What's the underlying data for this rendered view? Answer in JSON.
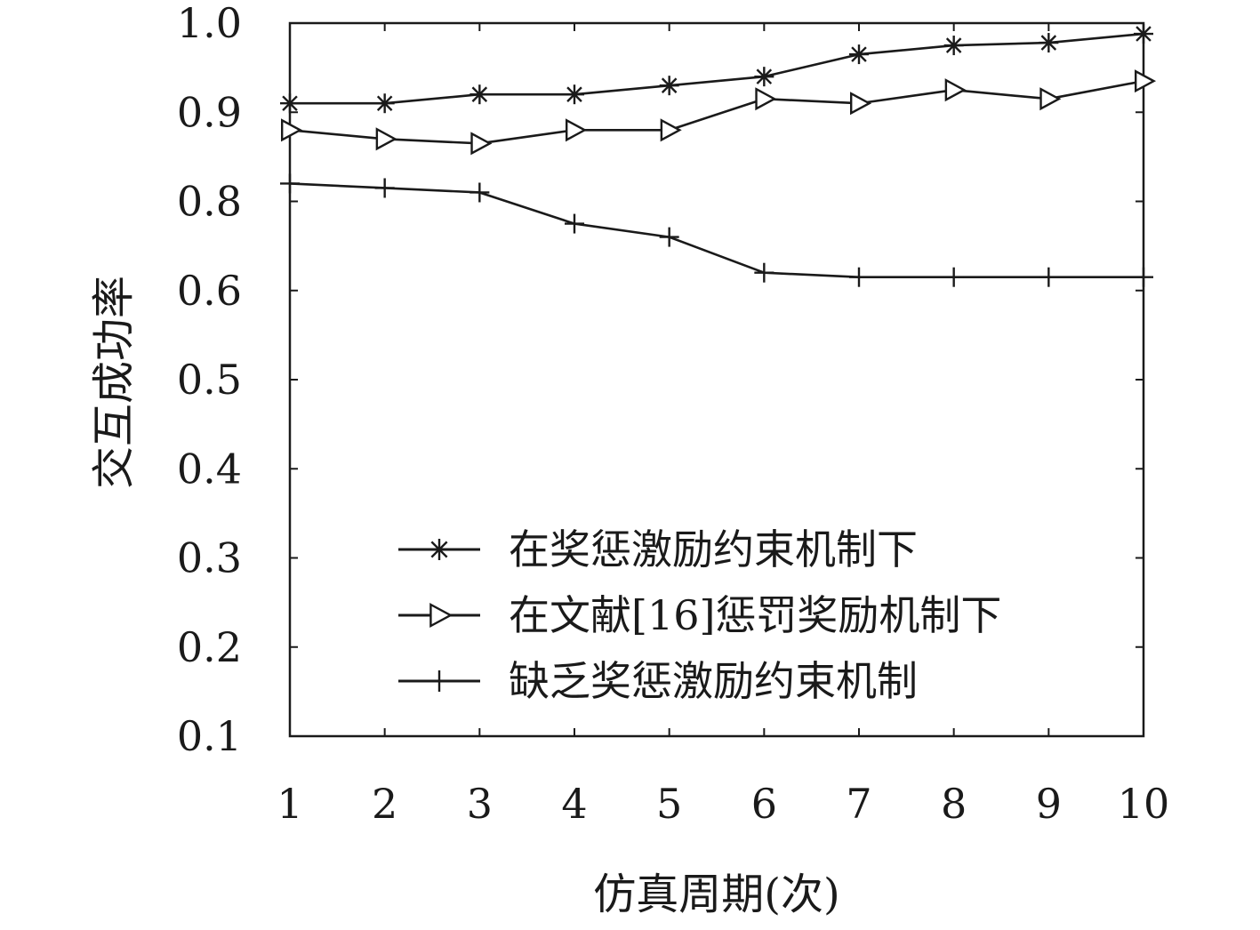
{
  "chart_data": {
    "type": "line",
    "title": "",
    "xlabel": "仿真周期(次)",
    "ylabel": "交互成功率",
    "x": [
      1,
      2,
      3,
      4,
      5,
      6,
      7,
      8,
      9,
      10
    ],
    "xlim": [
      1,
      10
    ],
    "ylim": [
      0.1,
      1.0
    ],
    "x_ticks": [
      "1",
      "2",
      "3",
      "4",
      "5",
      "6",
      "7",
      "8",
      "9",
      "10"
    ],
    "y_tick_values": [
      0.1,
      0.2,
      0.3,
      0.4,
      0.5,
      0.6,
      0.8,
      0.9,
      1.0
    ],
    "y_ticks": [
      "0.1",
      "0.2",
      "0.3",
      "0.4",
      "0.5",
      "0.6",
      "0.8",
      "0.9",
      "1.0"
    ],
    "grid": false,
    "legend_position": "bottom-right",
    "series": [
      {
        "name": "在奖惩激励约束机制下",
        "marker": "asterisk",
        "values": [
          0.91,
          0.91,
          0.92,
          0.92,
          0.93,
          0.94,
          0.965,
          0.975,
          0.978,
          0.988
        ]
      },
      {
        "name": "在文献[16]惩罚奖励机制下",
        "marker": "triangle-right",
        "values": [
          0.88,
          0.87,
          0.865,
          0.88,
          0.88,
          0.915,
          0.91,
          0.925,
          0.915,
          0.935
        ]
      },
      {
        "name": "缺乏奖惩激励约束机制",
        "marker": "plus",
        "values": [
          0.82,
          0.815,
          0.81,
          0.75,
          0.72,
          0.64,
          0.63,
          0.63,
          0.63,
          0.63
        ]
      }
    ]
  },
  "colors": {
    "line": "#1a1a1a",
    "background": "#ffffff"
  }
}
